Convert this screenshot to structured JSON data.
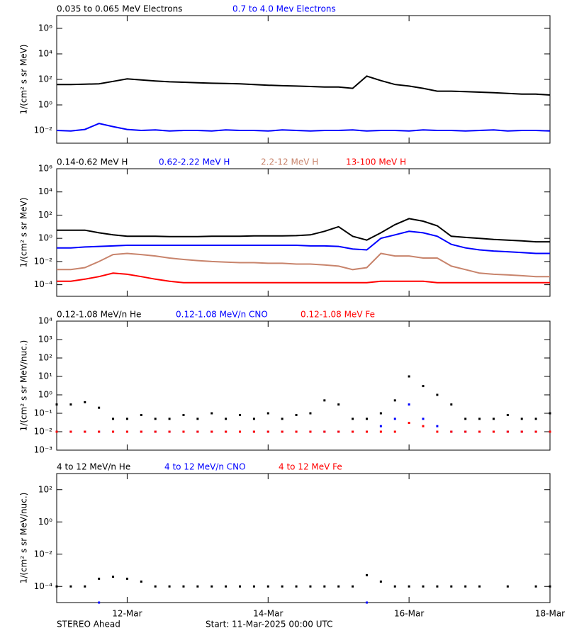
{
  "chart_data": [
    {
      "type": "line",
      "log_y": true,
      "ylabel": "1/(cm² s sr MeV)",
      "x": [
        0,
        0.2,
        0.4,
        0.6,
        0.8,
        1,
        1.2,
        1.4,
        1.6,
        1.8,
        2,
        2.2,
        2.4,
        2.6,
        2.8,
        3,
        3.2,
        3.4,
        3.6,
        3.8,
        4,
        4.2,
        4.4,
        4.6,
        4.8,
        5,
        5.2,
        5.4,
        5.6,
        5.8,
        6,
        6.2,
        6.4,
        6.6,
        6.8,
        7
      ],
      "xlim": [
        0,
        7
      ],
      "xticks": [
        1,
        3,
        5,
        7
      ],
      "ylim": [
        0.001,
        10000000
      ],
      "yticks": [
        {
          "value": 0.01,
          "label": "10⁻²"
        },
        {
          "value": 1,
          "label": "10⁰"
        },
        {
          "value": 100,
          "label": "10²"
        },
        {
          "value": 10000,
          "label": "10⁴"
        },
        {
          "value": 1000000,
          "label": "10⁶"
        }
      ],
      "series": [
        {
          "name": "0.035 to 0.065 MeV Electrons",
          "color": "#000000",
          "values": [
            40,
            40,
            42,
            45,
            70,
            110,
            90,
            75,
            65,
            60,
            55,
            50,
            48,
            45,
            40,
            35,
            32,
            30,
            28,
            25,
            25,
            20,
            180,
            80,
            40,
            30,
            20,
            12,
            12,
            11,
            10,
            9,
            8,
            7,
            7,
            6
          ]
        },
        {
          "name": "0.7 to 4.0 Mev Electrons",
          "color": "#0000ff",
          "values": [
            0.01,
            0.009,
            0.012,
            0.035,
            0.02,
            0.012,
            0.01,
            0.011,
            0.009,
            0.01,
            0.01,
            0.009,
            0.011,
            0.01,
            0.01,
            0.009,
            0.011,
            0.01,
            0.009,
            0.01,
            0.01,
            0.011,
            0.009,
            0.01,
            0.01,
            0.009,
            0.011,
            0.01,
            0.01,
            0.009,
            0.01,
            0.011,
            0.009,
            0.01,
            0.01,
            0.009
          ]
        }
      ]
    },
    {
      "type": "line",
      "log_y": true,
      "ylabel": "1/(cm² s sr MeV)",
      "x": [
        0,
        0.2,
        0.4,
        0.6,
        0.8,
        1,
        1.2,
        1.4,
        1.6,
        1.8,
        2,
        2.2,
        2.4,
        2.6,
        2.8,
        3,
        3.2,
        3.4,
        3.6,
        3.8,
        4,
        4.2,
        4.4,
        4.6,
        4.8,
        5,
        5.2,
        5.4,
        5.6,
        5.8,
        6,
        6.2,
        6.4,
        6.6,
        6.8,
        7
      ],
      "xlim": [
        0,
        7
      ],
      "xticks": [
        1,
        3,
        5,
        7
      ],
      "ylim": [
        1e-05,
        1000000
      ],
      "yticks": [
        {
          "value": 0.0001,
          "label": "10⁻⁴"
        },
        {
          "value": 0.01,
          "label": "10⁻²"
        },
        {
          "value": 1,
          "label": "10⁰"
        },
        {
          "value": 100,
          "label": "10²"
        },
        {
          "value": 10000,
          "label": "10⁴"
        },
        {
          "value": 1000000,
          "label": "10⁶"
        }
      ],
      "series": [
        {
          "name": "0.14-0.62 MeV H",
          "color": "#000000",
          "values": [
            5,
            5,
            5,
            3,
            2,
            1.5,
            1.5,
            1.5,
            1.4,
            1.4,
            1.4,
            1.5,
            1.5,
            1.5,
            1.6,
            1.6,
            1.6,
            1.7,
            2,
            4,
            10,
            1.5,
            0.7,
            3,
            15,
            50,
            30,
            12,
            1.5,
            1.2,
            1,
            0.8,
            0.7,
            0.6,
            0.5,
            0.5
          ]
        },
        {
          "name": "0.62-2.22 MeV H",
          "color": "#0000ff",
          "values": [
            0.15,
            0.15,
            0.18,
            0.2,
            0.22,
            0.25,
            0.25,
            0.25,
            0.25,
            0.25,
            0.25,
            0.25,
            0.25,
            0.25,
            0.25,
            0.25,
            0.25,
            0.25,
            0.22,
            0.22,
            0.2,
            0.12,
            0.1,
            1,
            2,
            4,
            3,
            1.5,
            0.3,
            0.15,
            0.1,
            0.08,
            0.07,
            0.06,
            0.05,
            0.05
          ]
        },
        {
          "name": "2.2-12 MeV H",
          "color": "#c8846c",
          "values": [
            0.002,
            0.002,
            0.003,
            0.01,
            0.04,
            0.05,
            0.04,
            0.03,
            0.02,
            0.015,
            0.012,
            0.01,
            0.009,
            0.008,
            0.008,
            0.007,
            0.007,
            0.006,
            0.006,
            0.005,
            0.004,
            0.002,
            0.003,
            0.05,
            0.03,
            0.03,
            0.02,
            0.02,
            0.004,
            0.002,
            0.001,
            0.0008,
            0.0007,
            0.0006,
            0.0005,
            0.0005
          ]
        },
        {
          "name": "13-100 MeV H",
          "color": "#ff0000",
          "values": [
            0.0002,
            0.0002,
            0.0003,
            0.0005,
            0.001,
            0.0008,
            0.0005,
            0.0003,
            0.0002,
            0.00015,
            0.00015,
            0.00015,
            0.00015,
            0.00015,
            0.00015,
            0.00015,
            0.00015,
            0.00015,
            0.00015,
            0.00015,
            0.00015,
            0.00015,
            0.00015,
            0.0002,
            0.0002,
            0.0002,
            0.0002,
            0.00015,
            0.00015,
            0.00015,
            0.00015,
            0.00015,
            0.00015,
            0.00015,
            0.00015,
            0.00015
          ]
        }
      ]
    },
    {
      "type": "scatter",
      "log_y": true,
      "ylabel": "1/(cm² s sr MeV/nuc.)",
      "x": [
        0,
        0.2,
        0.4,
        0.6,
        0.8,
        1,
        1.2,
        1.4,
        1.6,
        1.8,
        2,
        2.2,
        2.4,
        2.6,
        2.8,
        3,
        3.2,
        3.4,
        3.6,
        3.8,
        4,
        4.2,
        4.4,
        4.6,
        4.8,
        5,
        5.2,
        5.4,
        5.6,
        5.8,
        6,
        6.2,
        6.4,
        6.6,
        6.8,
        7
      ],
      "xlim": [
        0,
        7
      ],
      "xticks": [
        1,
        3,
        5,
        7
      ],
      "ylim": [
        0.001,
        10000
      ],
      "yticks": [
        {
          "value": 0.001,
          "label": "10⁻³"
        },
        {
          "value": 0.01,
          "label": "10⁻²"
        },
        {
          "value": 0.1,
          "label": "10⁻¹"
        },
        {
          "value": 1,
          "label": "10⁰"
        },
        {
          "value": 10,
          "label": "10¹"
        },
        {
          "value": 100,
          "label": "10²"
        },
        {
          "value": 1000,
          "label": "10³"
        },
        {
          "value": 10000,
          "label": "10⁴"
        }
      ],
      "series": [
        {
          "name": "0.12-1.08 MeV/n He",
          "color": "#000000",
          "values": [
            0.3,
            0.3,
            0.4,
            0.2,
            0.05,
            0.05,
            0.08,
            0.05,
            0.05,
            0.08,
            0.05,
            0.1,
            0.05,
            0.08,
            0.05,
            0.1,
            0.05,
            0.08,
            0.1,
            0.5,
            0.3,
            0.05,
            0.05,
            0.1,
            0.5,
            10,
            3,
            1,
            0.3,
            0.05,
            0.05,
            0.05,
            0.08,
            0.05,
            0.05,
            0.1
          ]
        },
        {
          "name": "0.12-1.08 MeV/n CNO",
          "color": "#0000ff",
          "values": [
            0.01,
            0.01,
            0.01,
            0.01,
            0.01,
            0.01,
            0.01,
            0.01,
            0.01,
            0.01,
            0.01,
            0.01,
            0.01,
            0.01,
            0.01,
            0.01,
            0.01,
            0.01,
            0.01,
            0.01,
            0.01,
            0.01,
            0.01,
            0.02,
            0.05,
            0.3,
            0.05,
            0.02,
            0.01,
            0.01,
            0.01,
            0.01,
            0.01,
            0.01,
            0.01,
            0.01
          ]
        },
        {
          "name": "0.12-1.08 MeV Fe",
          "color": "#ff0000",
          "values": [
            0.01,
            0.01,
            0.01,
            0.01,
            0.01,
            0.01,
            0.01,
            0.01,
            0.01,
            0.01,
            0.01,
            0.01,
            0.01,
            0.01,
            0.01,
            0.01,
            0.01,
            0.01,
            0.01,
            0.01,
            0.01,
            0.01,
            0.01,
            0.01,
            0.01,
            0.03,
            0.02,
            0.01,
            0.01,
            0.01,
            0.01,
            0.01,
            0.01,
            0.01,
            0.01,
            0.01
          ]
        }
      ]
    },
    {
      "type": "scatter",
      "log_y": true,
      "ylabel": "1/(cm² s sr MeV/nuc.)",
      "x": [
        0,
        0.2,
        0.4,
        0.6,
        0.8,
        1,
        1.2,
        1.4,
        1.6,
        1.8,
        2,
        2.2,
        2.4,
        2.6,
        2.8,
        3,
        3.2,
        3.4,
        3.6,
        3.8,
        4,
        4.2,
        4.4,
        4.6,
        4.8,
        5,
        5.2,
        5.4,
        5.6,
        5.8,
        6,
        6.2,
        6.4,
        6.6,
        6.8,
        7
      ],
      "xlim": [
        0,
        7
      ],
      "xticks": [
        {
          "value": 1,
          "label": "12-Mar"
        },
        {
          "value": 3,
          "label": "14-Mar"
        },
        {
          "value": 5,
          "label": "16-Mar"
        },
        {
          "value": 7,
          "label": "18-Mar"
        }
      ],
      "ylim": [
        1e-05,
        1000
      ],
      "yticks": [
        {
          "value": 0.0001,
          "label": "10⁻⁴"
        },
        {
          "value": 0.01,
          "label": "10⁻²"
        },
        {
          "value": 1,
          "label": "10⁰"
        },
        {
          "value": 100,
          "label": "10²"
        }
      ],
      "series": [
        {
          "name": "4 to 12 MeV/n He",
          "color": "#000000",
          "values": [
            0.0001,
            0.0001,
            0.0001,
            0.0003,
            0.0004,
            0.0003,
            0.0002,
            0.0001,
            0.0001,
            0.0001,
            0.0001,
            0.0001,
            0.0001,
            0.0001,
            0.0001,
            0.0001,
            0.0001,
            0.0001,
            0.0001,
            0.0001,
            0.0001,
            0.0001,
            0.0005,
            0.0002,
            0.0001,
            0.0001,
            0.0001,
            0.0001,
            0.0001,
            0.0001,
            0.0001,
            null,
            0.0001,
            null,
            0.0001,
            0.0001
          ]
        },
        {
          "name": "4 to 12 MeV/n CNO",
          "color": "#0000ff",
          "values": [
            null,
            null,
            null,
            1e-05,
            null,
            null,
            null,
            null,
            null,
            null,
            null,
            null,
            null,
            null,
            null,
            null,
            null,
            null,
            null,
            null,
            null,
            null,
            1e-05,
            null,
            null,
            null,
            null,
            null,
            null,
            null,
            null,
            null,
            null,
            null,
            null,
            null
          ]
        },
        {
          "name": "4 to 12 MeV Fe",
          "color": "#ff0000",
          "values": [
            null,
            null,
            null,
            null,
            null,
            null,
            null,
            null,
            null,
            null,
            null,
            null,
            null,
            null,
            null,
            null,
            null,
            null,
            null,
            null,
            null,
            null,
            null,
            null,
            null,
            null,
            null,
            null,
            null,
            null,
            null,
            null,
            null,
            null,
            null,
            null
          ]
        }
      ]
    }
  ],
  "footer": {
    "left": "STEREO Ahead",
    "center": "Start: 11-Mar-2025 00:00 UTC"
  }
}
